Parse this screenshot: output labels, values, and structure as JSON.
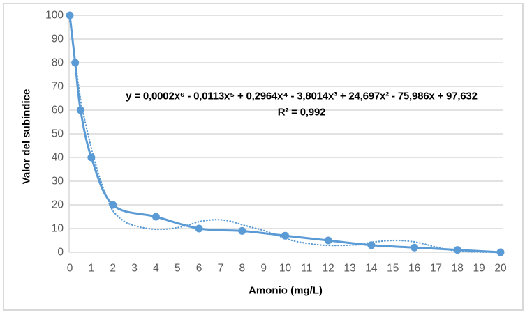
{
  "style": {
    "series_color": "#5b9bd5",
    "gridline_color": "#d9d9d9",
    "axis_line_color": "#d9d9d9",
    "tick_label_color": "#595959",
    "text_color": "#000000",
    "border_color": "#d9d9d9",
    "background": "#ffffff"
  },
  "chart_data": {
    "type": "line",
    "title": "",
    "xlabel": "Amonio (mg/L)",
    "ylabel": "Valor del subindice",
    "xlim": [
      0,
      20
    ],
    "ylim": [
      0,
      100
    ],
    "xticks": [
      0,
      1,
      2,
      3,
      4,
      5,
      6,
      7,
      8,
      9,
      10,
      11,
      12,
      13,
      14,
      15,
      16,
      17,
      18,
      19,
      20
    ],
    "yticks": [
      0,
      10,
      20,
      30,
      40,
      50,
      60,
      70,
      80,
      90,
      100
    ],
    "grid": "horizontal-only",
    "legend": "none",
    "series": [
      {
        "name": "data-series",
        "style": "solid-smooth-with-round-markers",
        "color": "#5b9bd5",
        "points": [
          [
            0,
            100
          ],
          [
            0.25,
            80
          ],
          [
            0.5,
            60
          ],
          [
            1,
            40
          ],
          [
            2,
            20
          ],
          [
            4,
            15
          ],
          [
            6,
            10
          ],
          [
            8,
            9
          ],
          [
            10,
            7
          ],
          [
            12,
            5
          ],
          [
            14,
            3
          ],
          [
            16,
            2
          ],
          [
            18,
            1
          ],
          [
            20,
            0
          ]
        ]
      },
      {
        "name": "polynomial-trendline-degree-6",
        "style": "dotted-smooth-no-markers",
        "color": "#5b9bd5",
        "points": [
          [
            0,
            97.6
          ],
          [
            0.25,
            81
          ],
          [
            0.5,
            64.5
          ],
          [
            0.75,
            53.5
          ],
          [
            1,
            44
          ],
          [
            1.25,
            35.5
          ],
          [
            1.5,
            28.5
          ],
          [
            1.75,
            22.5
          ],
          [
            2,
            17.5
          ],
          [
            2.5,
            13.2
          ],
          [
            3,
            11.2
          ],
          [
            3.5,
            10.2
          ],
          [
            4,
            9.7
          ],
          [
            4.5,
            9.8
          ],
          [
            5,
            10.4
          ],
          [
            5.5,
            11.5
          ],
          [
            6,
            12.9
          ],
          [
            6.5,
            13.6
          ],
          [
            7,
            13.7
          ],
          [
            7.5,
            13
          ],
          [
            8,
            11.6
          ],
          [
            8.5,
            10.4
          ],
          [
            9,
            9.2
          ],
          [
            9.5,
            7.6
          ],
          [
            10,
            5.9
          ],
          [
            10.5,
            4.6
          ],
          [
            11,
            3.8
          ],
          [
            11.5,
            3.2
          ],
          [
            12,
            2.9
          ],
          [
            12.5,
            2.9
          ],
          [
            13,
            3
          ],
          [
            13.5,
            3.3
          ],
          [
            14,
            4.2
          ],
          [
            14.5,
            4.7
          ],
          [
            15,
            5
          ],
          [
            15.5,
            4.9
          ],
          [
            16,
            4.4
          ],
          [
            16.5,
            3.4
          ],
          [
            17,
            2.2
          ],
          [
            17.5,
            1.2
          ],
          [
            18,
            0.5
          ],
          [
            18.5,
            0.2
          ],
          [
            19,
            0.1
          ],
          [
            19.5,
            0
          ],
          [
            20,
            0
          ]
        ]
      }
    ],
    "annotations": {
      "equation": "y = 0,0002x⁶ - 0,0113x⁵ + 0,2964x⁴ - 3,8014x³ + 24,697x² - 75,986x + 97,632",
      "r_squared": "R² = 0,992"
    }
  }
}
